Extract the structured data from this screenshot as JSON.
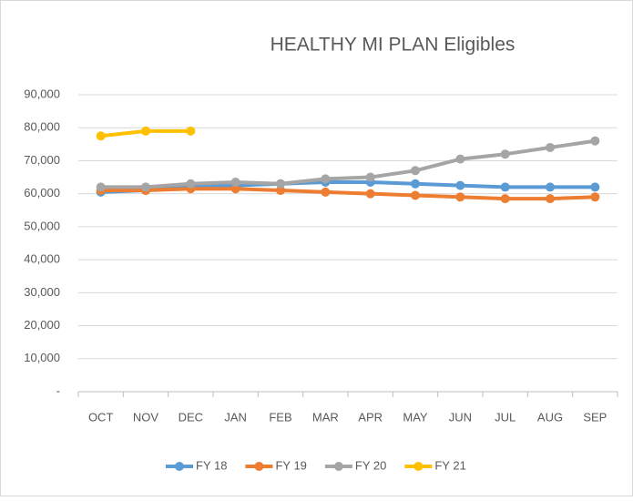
{
  "chart_data": {
    "type": "line",
    "title": "HEALTHY MI PLAN Eligibles",
    "categories": [
      "OCT",
      "NOV",
      "DEC",
      "JAN",
      "FEB",
      "MAR",
      "APR",
      "MAY",
      "JUN",
      "JUL",
      "AUG",
      "SEP"
    ],
    "series": [
      {
        "name": "FY 18",
        "color": "#5b9bd5",
        "values": [
          60500,
          61000,
          62500,
          62500,
          63000,
          63500,
          63500,
          63000,
          62500,
          62000,
          62000,
          62000
        ]
      },
      {
        "name": "FY 19",
        "color": "#ed7d31",
        "values": [
          61000,
          61000,
          61500,
          61500,
          61000,
          60500,
          60000,
          59500,
          59000,
          58500,
          58500,
          59000
        ]
      },
      {
        "name": "FY 20",
        "color": "#a5a5a5",
        "values": [
          62000,
          62000,
          63000,
          63500,
          63000,
          64500,
          65000,
          67000,
          70500,
          72000,
          74000,
          76000
        ]
      },
      {
        "name": "FY 21",
        "color": "#ffc000",
        "values": [
          77500,
          79000,
          79000,
          null,
          null,
          null,
          null,
          null,
          null,
          null,
          null,
          null
        ]
      }
    ],
    "ylim": [
      0,
      90000
    ],
    "yticks": [
      {
        "value": 0,
        "label": "-"
      },
      {
        "value": 10000,
        "label": "10,000"
      },
      {
        "value": 20000,
        "label": "20,000"
      },
      {
        "value": 30000,
        "label": "30,000"
      },
      {
        "value": 40000,
        "label": "40,000"
      },
      {
        "value": 50000,
        "label": "50,000"
      },
      {
        "value": 60000,
        "label": "60,000"
      },
      {
        "value": 70000,
        "label": "70,000"
      },
      {
        "value": 80000,
        "label": "80,000"
      },
      {
        "value": 90000,
        "label": "90,000"
      }
    ],
    "grid": true,
    "legend": "bottom"
  }
}
